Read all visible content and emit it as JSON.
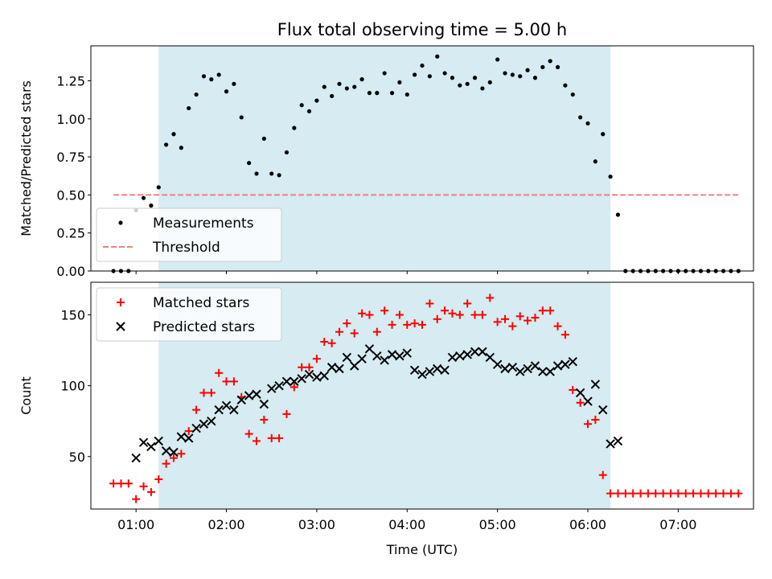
{
  "chart_data": [
    {
      "type": "scatter",
      "title": "Flux total observing time = 5.00 h",
      "xlabel": "",
      "ylabel": "Matched/Predicted stars",
      "xlim": [
        "00:30",
        "07:50"
      ],
      "ylim": [
        0,
        1.48
      ],
      "yticks": [
        "0.00",
        "0.25",
        "0.50",
        "0.75",
        "1.00",
        "1.25"
      ],
      "x_ticks_hidden": true,
      "observing_window": [
        "01:15",
        "06:15"
      ],
      "window_color": "#add8e6",
      "legend_position": "lower-left",
      "series": [
        {
          "name": "Measurements",
          "color": "#000000",
          "marker": "dot",
          "x": [
            "00:45",
            "00:50",
            "00:55",
            "01:00",
            "01:05",
            "01:10",
            "01:15",
            "01:20",
            "01:25",
            "01:30",
            "01:35",
            "01:40",
            "01:45",
            "01:50",
            "01:55",
            "02:00",
            "02:05",
            "02:10",
            "02:15",
            "02:20",
            "02:25",
            "02:30",
            "02:35",
            "02:40",
            "02:45",
            "02:50",
            "02:55",
            "03:00",
            "03:05",
            "03:10",
            "03:15",
            "03:20",
            "03:25",
            "03:30",
            "03:35",
            "03:40",
            "03:45",
            "03:50",
            "03:55",
            "04:00",
            "04:05",
            "04:10",
            "04:15",
            "04:20",
            "04:25",
            "04:30",
            "04:35",
            "04:40",
            "04:45",
            "04:50",
            "04:55",
            "05:00",
            "05:05",
            "05:10",
            "05:15",
            "05:20",
            "05:25",
            "05:30",
            "05:35",
            "05:40",
            "05:45",
            "05:50",
            "05:55",
            "06:00",
            "06:05",
            "06:10",
            "06:15",
            "06:20",
            "06:25",
            "06:30",
            "06:35",
            "06:40",
            "06:45",
            "06:50",
            "06:55",
            "07:00",
            "07:05",
            "07:10",
            "07:15",
            "07:20",
            "07:25",
            "07:30",
            "07:35",
            "07:40"
          ],
          "y": [
            0.0,
            0.0,
            0.0,
            0.4,
            0.48,
            0.43,
            0.55,
            0.83,
            0.9,
            0.81,
            1.07,
            1.16,
            1.28,
            1.26,
            1.29,
            1.18,
            1.23,
            1.01,
            0.71,
            0.64,
            0.87,
            0.64,
            0.63,
            0.78,
            0.94,
            1.09,
            1.05,
            1.12,
            1.21,
            1.15,
            1.23,
            1.2,
            1.21,
            1.26,
            1.17,
            1.17,
            1.3,
            1.17,
            1.24,
            1.16,
            1.29,
            1.35,
            1.28,
            1.41,
            1.3,
            1.27,
            1.22,
            1.23,
            1.27,
            1.2,
            1.24,
            1.39,
            1.3,
            1.29,
            1.28,
            1.32,
            1.27,
            1.34,
            1.38,
            1.34,
            1.22,
            1.16,
            1.01,
            0.97,
            0.72,
            0.9,
            0.62,
            0.37,
            0.0,
            0.0,
            0.0,
            0.0,
            0.0,
            0.0,
            0.0,
            0.0,
            0.0,
            0.0,
            0.0,
            0.0,
            0.0,
            0.0,
            0.0,
            0.0
          ]
        },
        {
          "name": "Threshold",
          "color": "#f08080",
          "style": "dashed",
          "x": [
            "00:45",
            "07:40"
          ],
          "y": [
            0.5,
            0.5
          ]
        }
      ]
    },
    {
      "type": "scatter",
      "title": "",
      "xlabel": "Time (UTC)",
      "ylabel": "Count",
      "xlim": [
        "00:30",
        "07:50"
      ],
      "ylim": [
        13,
        173
      ],
      "yticks": [
        "50",
        "100",
        "150"
      ],
      "xticks": [
        "01:00",
        "02:00",
        "03:00",
        "04:00",
        "05:00",
        "06:00",
        "07:00"
      ],
      "observing_window": [
        "01:15",
        "06:15"
      ],
      "window_color": "#add8e6",
      "legend_position": "top-left",
      "series": [
        {
          "name": "Matched stars",
          "color": "#ff0000",
          "marker": "plus",
          "x": [
            "00:45",
            "00:50",
            "00:55",
            "01:00",
            "01:05",
            "01:10",
            "01:15",
            "01:20",
            "01:25",
            "01:30",
            "01:35",
            "01:40",
            "01:45",
            "01:50",
            "01:55",
            "02:00",
            "02:05",
            "02:10",
            "02:15",
            "02:20",
            "02:25",
            "02:30",
            "02:35",
            "02:40",
            "02:45",
            "02:50",
            "02:55",
            "03:00",
            "03:05",
            "03:10",
            "03:15",
            "03:20",
            "03:25",
            "03:30",
            "03:35",
            "03:40",
            "03:45",
            "03:50",
            "03:55",
            "04:00",
            "04:05",
            "04:10",
            "04:15",
            "04:20",
            "04:25",
            "04:30",
            "04:35",
            "04:40",
            "04:45",
            "04:50",
            "04:55",
            "05:00",
            "05:05",
            "05:10",
            "05:15",
            "05:20",
            "05:25",
            "05:30",
            "05:35",
            "05:40",
            "05:45",
            "05:50",
            "05:55",
            "06:00",
            "06:05",
            "06:10",
            "06:15",
            "06:20",
            "06:25",
            "06:30",
            "06:35",
            "06:40",
            "06:45",
            "06:50",
            "06:55",
            "07:00",
            "07:05",
            "07:10",
            "07:15",
            "07:20",
            "07:25",
            "07:30",
            "07:35",
            "07:40"
          ],
          "y": [
            31,
            31,
            31,
            20,
            29,
            25,
            34,
            45,
            49,
            52,
            68,
            83,
            95,
            95,
            109,
            103,
            103,
            92,
            66,
            61,
            76,
            63,
            63,
            80,
            99,
            113,
            113,
            119,
            131,
            130,
            138,
            144,
            137,
            151,
            150,
            138,
            153,
            143,
            150,
            143,
            144,
            143,
            158,
            147,
            153,
            151,
            150,
            158,
            150,
            150,
            162,
            145,
            147,
            142,
            149,
            146,
            148,
            153,
            153,
            142,
            136,
            97,
            88,
            73,
            76,
            37,
            24,
            24,
            24,
            24,
            24,
            24,
            24,
            24,
            24,
            24,
            24,
            24,
            24,
            24,
            24,
            24,
            24,
            24
          ]
        },
        {
          "name": "Predicted stars",
          "color": "#000000",
          "marker": "x",
          "x": [
            "01:00",
            "01:05",
            "01:10",
            "01:15",
            "01:20",
            "01:25",
            "01:30",
            "01:35",
            "01:40",
            "01:45",
            "01:50",
            "01:55",
            "02:00",
            "02:05",
            "02:10",
            "02:15",
            "02:20",
            "02:25",
            "02:30",
            "02:35",
            "02:40",
            "02:45",
            "02:50",
            "02:55",
            "03:00",
            "03:05",
            "03:10",
            "03:15",
            "03:20",
            "03:25",
            "03:30",
            "03:35",
            "03:40",
            "03:45",
            "03:50",
            "03:55",
            "04:00",
            "04:05",
            "04:10",
            "04:15",
            "04:20",
            "04:25",
            "04:30",
            "04:35",
            "04:40",
            "04:45",
            "04:50",
            "04:55",
            "05:00",
            "05:05",
            "05:10",
            "05:15",
            "05:20",
            "05:25",
            "05:30",
            "05:35",
            "05:40",
            "05:45",
            "05:50",
            "05:55",
            "06:00",
            "06:05",
            "06:10",
            "06:15",
            "06:20"
          ],
          "y": [
            49,
            60,
            57,
            61,
            54,
            53,
            64,
            63,
            70,
            73,
            75,
            83,
            86,
            83,
            90,
            93,
            94,
            87,
            98,
            100,
            103,
            103,
            105,
            108,
            106,
            107,
            113,
            112,
            120,
            114,
            119,
            126,
            121,
            118,
            122,
            121,
            123,
            111,
            108,
            110,
            112,
            111,
            120,
            121,
            122,
            124,
            124,
            120,
            115,
            112,
            113,
            110,
            112,
            114,
            110,
            110,
            114,
            115,
            117,
            95,
            89,
            101,
            83,
            59,
            61
          ]
        }
      ]
    }
  ]
}
